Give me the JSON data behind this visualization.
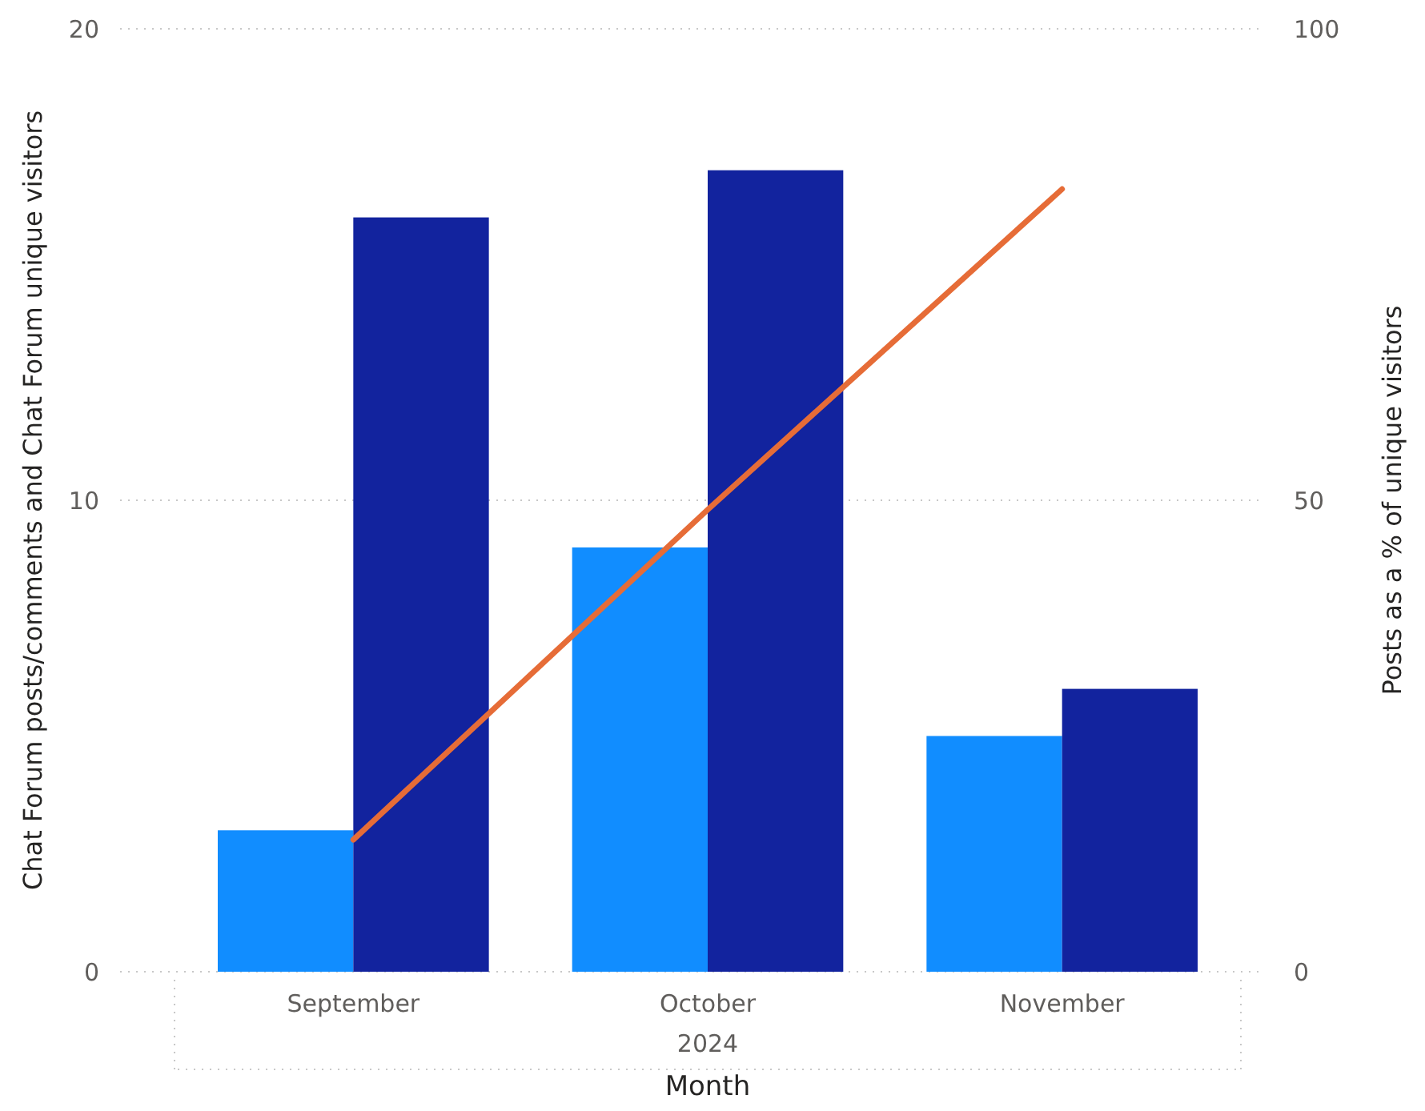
{
  "chart_data": {
    "type": "bar",
    "xlabel": "Month",
    "ylabel": "Chat Forum posts/comments and Chat Forum unique visitors",
    "y2label": "Posts as a % of unique visitors",
    "categories": [
      "September",
      "October",
      "November"
    ],
    "series": [
      {
        "color": "#118dff",
        "values": [
          3,
          9,
          5
        ]
      },
      {
        "color": "#12239e",
        "values": [
          16,
          17,
          6
        ]
      },
      {
        "type": "line",
        "axis": "y2",
        "color": "#e66c37",
        "values": [
          14,
          49,
          83
        ]
      }
    ],
    "ylim": [
      0,
      20
    ],
    "yticks": [
      0,
      10,
      20
    ],
    "y2lim": [
      0,
      100
    ],
    "y2ticks": [
      0,
      50,
      100
    ],
    "grid": "y",
    "line_style": "solid",
    "marker": "none",
    "annotations": [
      "2024"
    ]
  }
}
